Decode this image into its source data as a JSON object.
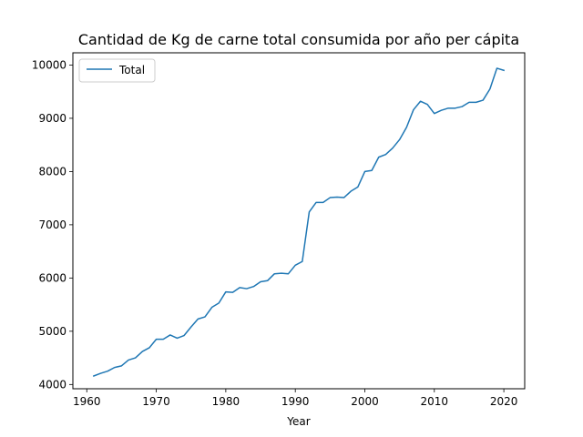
{
  "chart_data": {
    "type": "line",
    "title": "Cantidad de Kg de carne total consumida por año per cápita",
    "xlabel": "Year",
    "ylabel": "",
    "xlim": [
      1958,
      2023
    ],
    "ylim": [
      3920,
      10230
    ],
    "xticks": [
      1960,
      1970,
      1980,
      1990,
      2000,
      2010,
      2020
    ],
    "yticks": [
      4000,
      5000,
      6000,
      7000,
      8000,
      9000,
      10000
    ],
    "grid": false,
    "legend": {
      "position": "upper-left",
      "entries": [
        "Total"
      ]
    },
    "series": [
      {
        "name": "Total",
        "color": "#1f77b4",
        "x": [
          1961,
          1962,
          1963,
          1964,
          1965,
          1966,
          1967,
          1968,
          1969,
          1970,
          1971,
          1972,
          1973,
          1974,
          1975,
          1976,
          1977,
          1978,
          1979,
          1980,
          1981,
          1982,
          1983,
          1984,
          1985,
          1986,
          1987,
          1988,
          1989,
          1990,
          1991,
          1992,
          1993,
          1994,
          1995,
          1996,
          1997,
          1998,
          1999,
          2000,
          2001,
          2002,
          2003,
          2004,
          2005,
          2006,
          2007,
          2008,
          2009,
          2010,
          2011,
          2012,
          2013,
          2014,
          2015,
          2016,
          2017,
          2018,
          2019,
          2020
        ],
        "values": [
          4160,
          4210,
          4250,
          4320,
          4350,
          4460,
          4500,
          4620,
          4690,
          4850,
          4850,
          4930,
          4870,
          4920,
          5080,
          5230,
          5270,
          5450,
          5530,
          5740,
          5730,
          5820,
          5800,
          5840,
          5930,
          5950,
          6080,
          6090,
          6080,
          6240,
          6310,
          7240,
          7420,
          7420,
          7510,
          7520,
          7510,
          7630,
          7710,
          8000,
          8020,
          8270,
          8320,
          8440,
          8600,
          8830,
          9160,
          9320,
          9260,
          9090,
          9150,
          9190,
          9190,
          9220,
          9300,
          9300,
          9340,
          9550,
          9940,
          9900
        ]
      }
    ]
  }
}
